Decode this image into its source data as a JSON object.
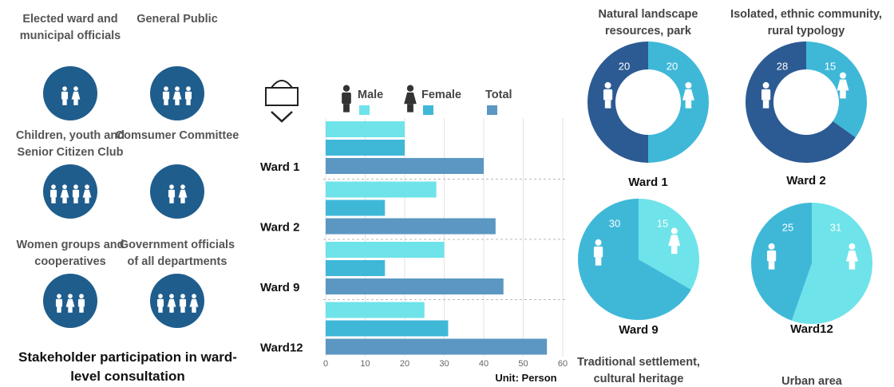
{
  "stakeholders": {
    "groups": [
      "Elected ward and municipal officials",
      "General Public",
      "Children, youth and Senior Citizen Club",
      "Comsumer Committee",
      "Women groups and cooperatives",
      "Government officials of all departments"
    ],
    "title": "Stakeholder participation in ward-level consultation"
  },
  "chart_data": [
    {
      "type": "bar",
      "orientation": "horizontal",
      "categories": [
        "Ward 1",
        "Ward 2",
        "Ward 9",
        "Ward12"
      ],
      "series": [
        {
          "name": "Male",
          "color": "#6ee3ea",
          "values": [
            20,
            28,
            30,
            25
          ]
        },
        {
          "name": "Female",
          "color": "#3fb8d8",
          "values": [
            20,
            15,
            15,
            31
          ]
        },
        {
          "name": "Total",
          "color": "#5b97c2",
          "values": [
            40,
            43,
            45,
            56
          ]
        }
      ],
      "xlim": [
        0,
        60
      ],
      "xticks": [
        0,
        10,
        20,
        30,
        40,
        50,
        60
      ],
      "grid": true,
      "unit_label": "Unit: Person"
    },
    {
      "type": "pie",
      "donut": true,
      "title": "Ward 1",
      "caption": "Natural landscape resources, park",
      "values": [
        20,
        20
      ],
      "colors": [
        "#2c5a93",
        "#3fb8d8"
      ]
    },
    {
      "type": "pie",
      "donut": true,
      "title": "Ward 2",
      "caption": "Isolated, ethnic community, rural typology",
      "values": [
        28,
        15
      ],
      "colors": [
        "#2c5a93",
        "#3fb8d8"
      ]
    },
    {
      "type": "pie",
      "donut": false,
      "title": "Ward 9",
      "caption": "Traditional settlement, cultural heritage",
      "values": [
        30,
        15
      ],
      "colors": [
        "#3fb8d8",
        "#6ee3ea"
      ]
    },
    {
      "type": "pie",
      "donut": false,
      "title": "Ward12",
      "caption": "Urban area",
      "values": [
        25,
        31
      ],
      "colors": [
        "#3fb8d8",
        "#6ee3ea"
      ]
    }
  ]
}
